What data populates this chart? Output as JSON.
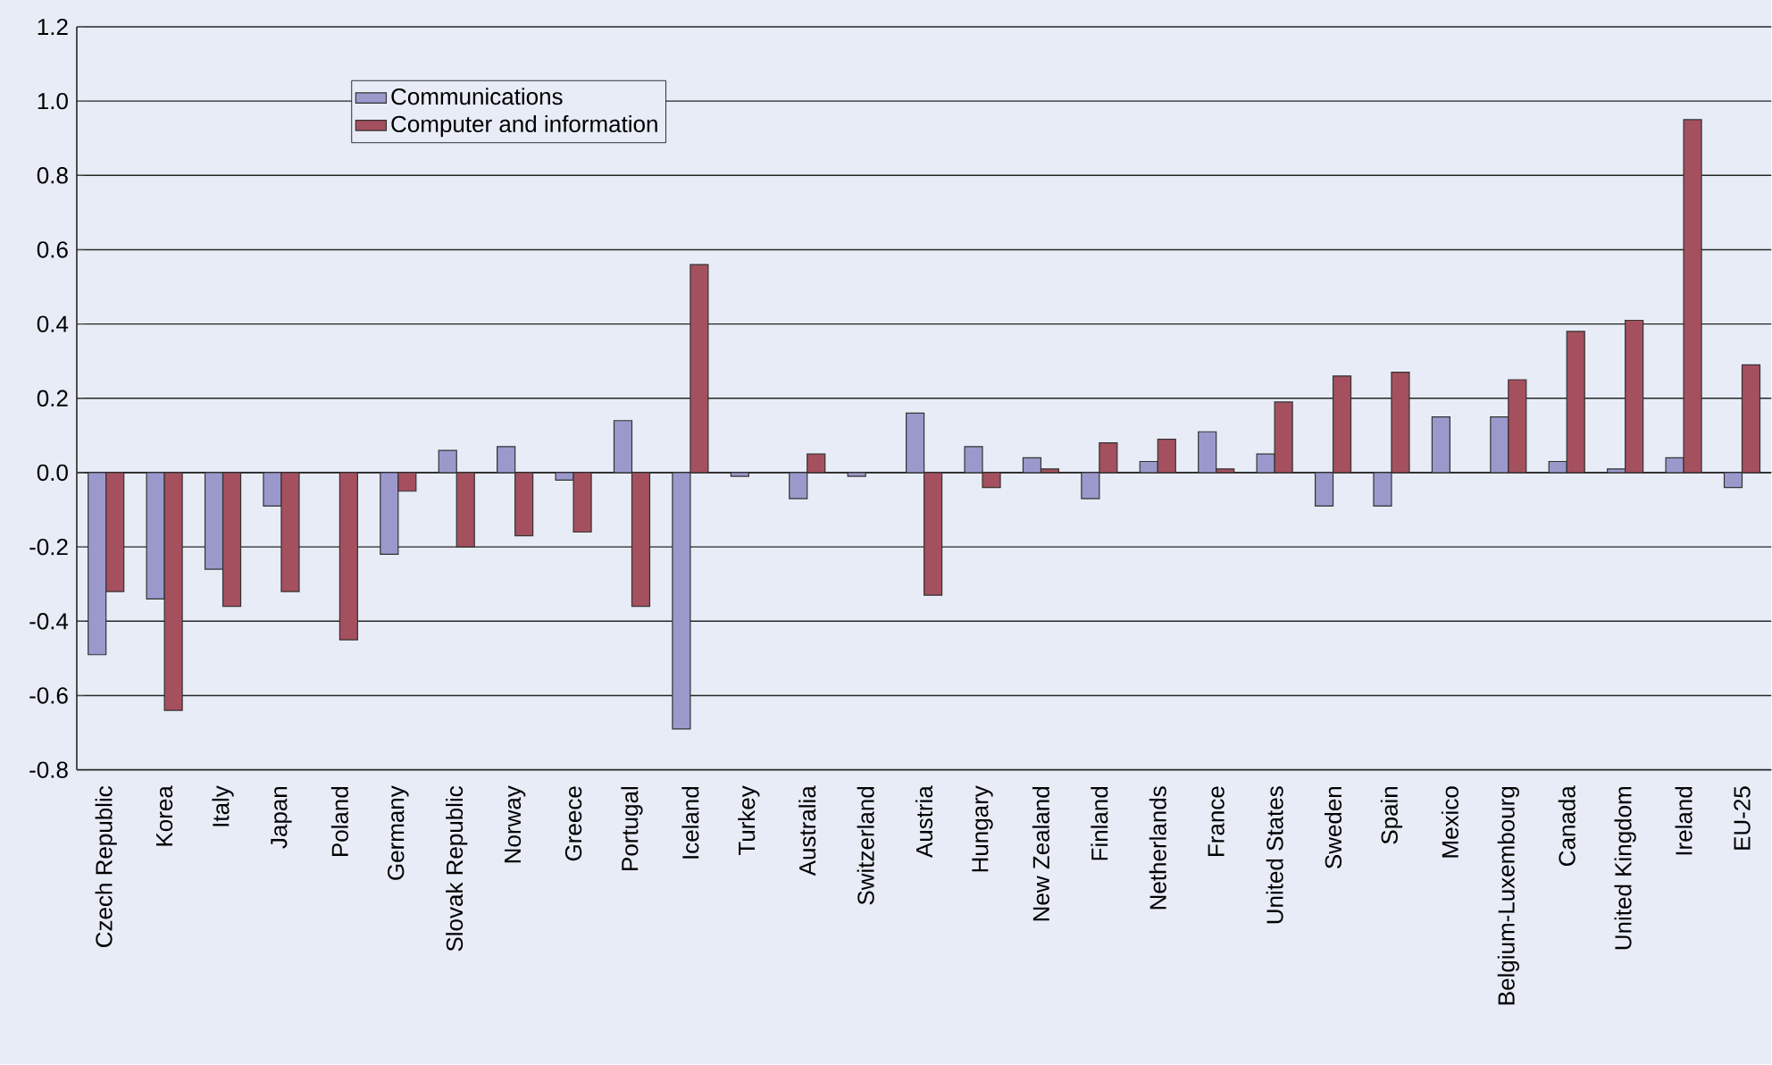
{
  "chart_data": {
    "type": "bar",
    "categories": [
      "Czech Republic",
      "Korea",
      "Italy",
      "Japan",
      "Poland",
      "Germany",
      "Slovak Republic",
      "Norway",
      "Greece",
      "Portugal",
      "Iceland",
      "Turkey",
      "Australia",
      "Switzerland",
      "Austria",
      "Hungary",
      "New Zealand",
      "Finland",
      "Netherlands",
      "France",
      "United States",
      "Sweden",
      "Spain",
      "Mexico",
      "Belgium-Luxembourg",
      "Canada",
      "United Kingdom",
      "Ireland",
      "EU-25"
    ],
    "series": [
      {
        "name": "Communications",
        "color": "#9b99cc",
        "values": [
          -0.49,
          -0.34,
          -0.26,
          -0.09,
          null,
          -0.22,
          0.06,
          0.07,
          -0.02,
          0.14,
          -0.69,
          -0.01,
          -0.07,
          -0.01,
          0.16,
          0.07,
          0.04,
          -0.07,
          0.03,
          0.11,
          0.05,
          -0.09,
          -0.09,
          0.15,
          0.15,
          0.03,
          0.01,
          0.04,
          -0.04
        ]
      },
      {
        "name": "Computer and information",
        "color": "#a5505e",
        "values": [
          -0.32,
          -0.64,
          -0.36,
          -0.32,
          -0.45,
          -0.05,
          -0.2,
          -0.17,
          -0.16,
          -0.36,
          0.56,
          null,
          0.05,
          null,
          -0.33,
          -0.04,
          0.01,
          0.08,
          0.09,
          0.01,
          0.19,
          0.26,
          0.27,
          null,
          0.25,
          0.38,
          0.41,
          0.95,
          0.29
        ]
      }
    ],
    "ylim": [
      -0.8,
      1.2
    ],
    "yticks": [
      {
        "value": -0.8,
        "label": "-0.8"
      },
      {
        "value": -0.6,
        "label": "-0.6"
      },
      {
        "value": -0.4,
        "label": "-0.4"
      },
      {
        "value": -0.2,
        "label": "-0.2"
      },
      {
        "value": 0,
        "label": "0.0"
      },
      {
        "value": 0.2,
        "label": "0.2"
      },
      {
        "value": 0.4,
        "label": "0.4"
      },
      {
        "value": 0.6,
        "label": "0.6"
      },
      {
        "value": 0.8,
        "label": "0.8"
      },
      {
        "value": 1.0,
        "label": "1.0"
      },
      {
        "value": 1.2,
        "label": "1.2"
      }
    ],
    "grid": "y",
    "legend": "top left"
  }
}
